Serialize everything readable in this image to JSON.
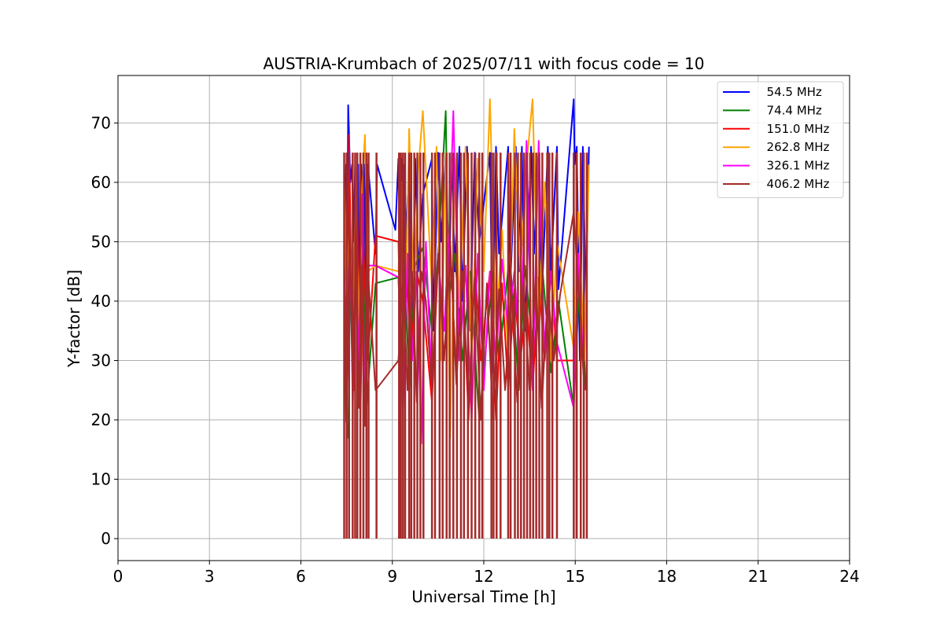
{
  "chart_data": {
    "type": "line",
    "title": "AUSTRIA-Krumbach of 2025/07/11 with focus code = 10",
    "xlabel": "Universal Time [h]",
    "ylabel": "Y-factor [dB]",
    "xlim": [
      0,
      24
    ],
    "ylim": [
      -3.7,
      78
    ],
    "xticks": [
      0,
      3,
      6,
      9,
      12,
      15,
      18,
      21,
      24
    ],
    "yticks": [
      0,
      10,
      20,
      30,
      40,
      50,
      60,
      70
    ],
    "grid": true,
    "legend_position": "top-right",
    "series": [
      {
        "name": "  54.5 MHz",
        "color": "#0000ff",
        "x": [
          7.42,
          7.45,
          7.48,
          7.52,
          7.55,
          7.58,
          7.62,
          7.68,
          7.72,
          7.78,
          7.82,
          7.88,
          7.92,
          7.98,
          8.03,
          8.08,
          8.15,
          8.2,
          8.45,
          8.5,
          9.1,
          9.2,
          9.25,
          9.3,
          9.35,
          9.4,
          9.45,
          9.55,
          9.65,
          9.75,
          9.85,
          10.0,
          10.3,
          10.35,
          10.5,
          10.6,
          10.75,
          10.85,
          10.95,
          11.05,
          11.2,
          11.3,
          11.45,
          11.55,
          11.7,
          11.85,
          12.2,
          12.3,
          12.4,
          12.5,
          12.8,
          12.85,
          13.05,
          13.15,
          13.25,
          13.35,
          13.55,
          13.65,
          13.8,
          13.9,
          14.1,
          14.2,
          14.4,
          14.45,
          14.95,
          14.98,
          15.05,
          15.15,
          15.25,
          15.35,
          15.45
        ],
        "y": [
          63,
          50,
          63,
          45,
          73,
          68,
          60,
          63,
          50,
          63,
          45,
          63,
          35,
          63,
          50,
          63,
          30,
          63,
          48,
          63,
          52,
          64,
          45,
          64,
          40,
          63,
          50,
          64,
          30,
          64,
          45,
          58,
          64,
          35,
          65,
          50,
          65,
          38,
          65,
          45,
          66,
          40,
          66,
          35,
          65,
          50,
          65,
          28,
          66,
          48,
          66,
          40,
          66,
          45,
          66,
          35,
          66,
          48,
          66,
          40,
          66,
          45,
          66,
          42,
          74,
          63,
          66,
          30,
          66,
          40,
          66
        ]
      },
      {
        "name": "  74.4 MHz",
        "color": "#008000",
        "x": [
          7.42,
          7.48,
          7.55,
          7.62,
          7.72,
          7.82,
          7.92,
          8.03,
          8.15,
          8.45,
          9.2,
          9.3,
          9.4,
          9.55,
          9.75,
          10.0,
          10.3,
          10.5,
          10.75,
          10.85,
          11.05,
          11.3,
          11.55,
          11.85,
          12.3,
          12.5,
          12.85,
          13.15,
          13.35,
          13.65,
          13.9,
          14.2,
          14.45,
          14.95,
          15.15,
          15.35
        ],
        "y": [
          50,
          20,
          17,
          45,
          30,
          52,
          25,
          50,
          22,
          43,
          44,
          30,
          48,
          25,
          46,
          49,
          35,
          48,
          72,
          40,
          48,
          30,
          45,
          20,
          45,
          30,
          48,
          25,
          46,
          30,
          47,
          28,
          40,
          22,
          45,
          25
        ]
      },
      {
        "name": "  151.0 MHz",
        "color": "#ff0000",
        "x": [
          7.42,
          7.5,
          7.58,
          7.65,
          7.75,
          7.85,
          7.95,
          8.05,
          8.2,
          8.45,
          9.2,
          9.3,
          9.45,
          9.6,
          9.8,
          10.0,
          10.3,
          10.5,
          10.7,
          10.9,
          11.1,
          11.3,
          11.5,
          11.7,
          11.9,
          12.2,
          12.4,
          12.6,
          12.8,
          13.0,
          13.2,
          13.4,
          13.6,
          13.8,
          14.0,
          14.2,
          14.4,
          14.95,
          15.1,
          15.3
        ],
        "y": [
          44,
          30,
          68,
          45,
          25,
          58,
          20,
          50,
          30,
          51,
          50,
          25,
          48,
          30,
          45,
          40,
          23,
          47,
          35,
          48,
          28,
          45,
          20,
          47,
          30,
          45,
          20,
          43,
          25,
          42,
          30,
          40,
          25,
          44,
          30,
          45,
          30,
          30,
          45,
          25
        ]
      },
      {
        "name": "  262.8 MHz",
        "color": "#ffa500",
        "x": [
          7.42,
          7.5,
          7.6,
          7.7,
          7.8,
          7.9,
          8.0,
          8.1,
          8.2,
          8.45,
          9.2,
          9.3,
          9.4,
          9.55,
          9.7,
          9.85,
          10.0,
          10.3,
          10.45,
          10.6,
          10.75,
          10.9,
          11.05,
          11.2,
          11.4,
          11.6,
          11.8,
          12.0,
          12.2,
          12.4,
          12.6,
          12.8,
          13.0,
          13.2,
          13.4,
          13.6,
          13.8,
          14.0,
          14.2,
          14.4,
          14.95,
          15.1,
          15.3,
          15.45
        ],
        "y": [
          61,
          40,
          55,
          30,
          62,
          35,
          58,
          68,
          45,
          46,
          45,
          60,
          30,
          69,
          40,
          62,
          72,
          42,
          66,
          30,
          65,
          17,
          64,
          39,
          66,
          30,
          64,
          45,
          74,
          35,
          52,
          30,
          69,
          45,
          63,
          74,
          35,
          60,
          30,
          50,
          32,
          55,
          30,
          63
        ]
      },
      {
        "name": "  326.1 MHz",
        "color": "#ff00ff",
        "x": [
          7.42,
          7.5,
          7.6,
          7.7,
          7.8,
          7.9,
          8.0,
          8.1,
          8.2,
          8.45,
          9.2,
          9.35,
          9.5,
          9.65,
          9.8,
          9.95,
          10.1,
          10.3,
          10.5,
          10.7,
          10.9,
          11.0,
          11.2,
          11.4,
          11.6,
          11.8,
          12.0,
          12.2,
          12.4,
          12.6,
          12.8,
          13.0,
          13.2,
          13.4,
          13.6,
          13.8,
          14.0,
          14.2,
          14.4,
          14.95,
          15.1,
          15.3
        ],
        "y": [
          45,
          25,
          55,
          22,
          48,
          30,
          58,
          20,
          46,
          46,
          44,
          21,
          48,
          30,
          45,
          16,
          50,
          25,
          48,
          35,
          56,
          72,
          30,
          46,
          20,
          48,
          25,
          45,
          30,
          47,
          35,
          45,
          30,
          67,
          25,
          67,
          30,
          45,
          33,
          22,
          48,
          25
        ]
      },
      {
        "name": "  406.2 MHz",
        "color": "#a52a2a",
        "x": [
          7.42,
          7.5,
          7.6,
          7.7,
          7.8,
          7.9,
          8.0,
          8.1,
          8.2,
          8.45,
          9.2,
          9.35,
          9.5,
          9.65,
          9.8,
          9.95,
          10.1,
          10.3,
          10.5,
          10.7,
          10.9,
          11.1,
          11.3,
          11.5,
          11.7,
          11.9,
          12.1,
          12.3,
          12.5,
          12.7,
          12.9,
          13.1,
          13.3,
          13.5,
          13.7,
          13.9,
          14.1,
          14.3,
          14.5,
          14.95,
          15.1,
          15.3
        ],
        "y": [
          43,
          20,
          55,
          25,
          48,
          22,
          46,
          19,
          45,
          25,
          30,
          44,
          25,
          45,
          23,
          45,
          40,
          25,
          48,
          30,
          50,
          26,
          45,
          22,
          44,
          20,
          43,
          20,
          42,
          25,
          42,
          23,
          43,
          25,
          44,
          22,
          42,
          30,
          41,
          55,
          43,
          25
        ]
      }
    ],
    "drop_lines": {
      "times": [
        7.42,
        7.5,
        7.58,
        7.7,
        7.78,
        7.85,
        7.95,
        8.05,
        8.15,
        8.22,
        8.48,
        9.22,
        9.28,
        9.35,
        9.42,
        9.55,
        9.62,
        9.72,
        9.82,
        9.92,
        10.02,
        10.3,
        10.4,
        10.55,
        10.65,
        10.78,
        10.88,
        11.0,
        11.12,
        11.25,
        11.35,
        11.48,
        11.6,
        11.72,
        11.85,
        11.95,
        12.25,
        12.32,
        12.42,
        12.55,
        12.8,
        12.88,
        13.02,
        13.12,
        13.22,
        13.32,
        13.42,
        13.52,
        13.62,
        13.72,
        13.82,
        13.92,
        14.08,
        14.15,
        14.25,
        14.4,
        14.95,
        15.05,
        15.18,
        15.28,
        15.38
      ],
      "min": 0,
      "max": 65,
      "color": "#a52a2a"
    }
  }
}
